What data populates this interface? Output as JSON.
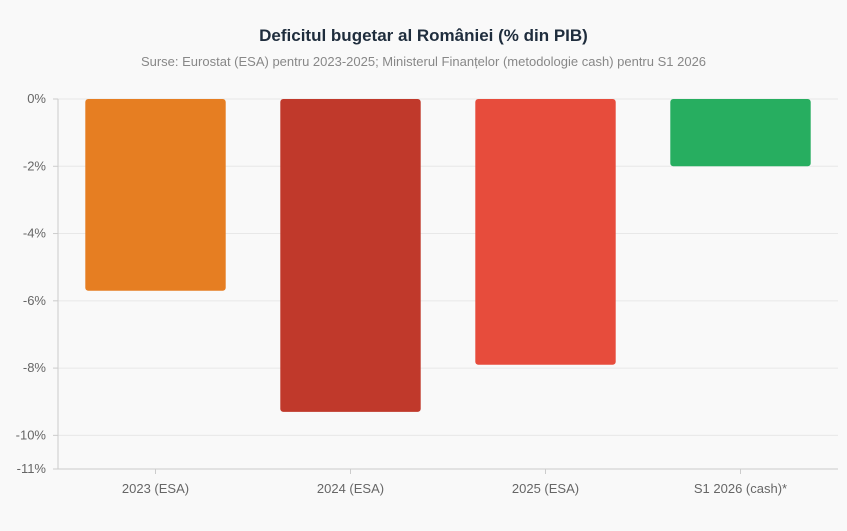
{
  "chart_data": {
    "type": "bar",
    "title": "Deficitul bugetar al României (% din PIB)",
    "subtitle": "Surse: Eurostat (ESA) pentru 2023-2025; Ministerul Finanțelor (metodologie cash) pentru S1 2026",
    "categories": [
      "2023 (ESA)",
      "2024 (ESA)",
      "2025 (ESA)",
      "S1 2026 (cash)*"
    ],
    "values": [
      -5.7,
      -9.3,
      -7.9,
      -2.0
    ],
    "colors": [
      "#e67e22",
      "#c0392b",
      "#e74c3c",
      "#27ae60"
    ],
    "ylim": [
      -11,
      0
    ],
    "yticks": [
      {
        "value": 0,
        "label": "0%"
      },
      {
        "value": -2,
        "label": "-2%"
      },
      {
        "value": -4,
        "label": "-4%"
      },
      {
        "value": -6,
        "label": "-6%"
      },
      {
        "value": -8,
        "label": "-8%"
      },
      {
        "value": -10,
        "label": "-10%"
      },
      {
        "value": -11,
        "label": "-11%"
      }
    ],
    "grid": true,
    "legend": "none"
  }
}
